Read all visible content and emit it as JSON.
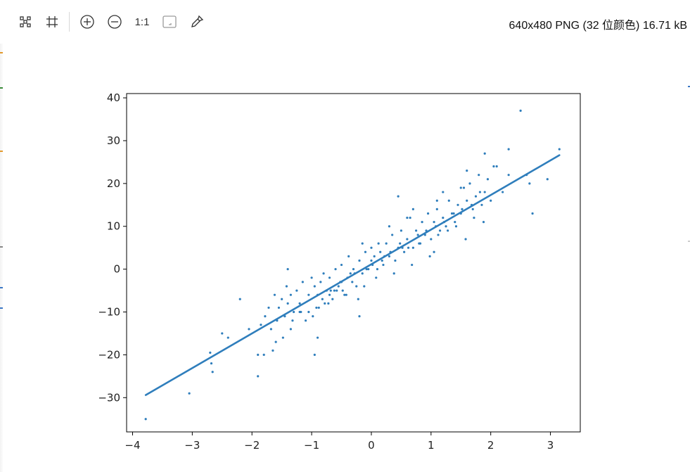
{
  "toolbar": {
    "tools": [
      {
        "name": "fit-window-icon",
        "label": ""
      },
      {
        "name": "crop-icon",
        "label": ""
      },
      {
        "name": "zoom-in-icon",
        "label": ""
      },
      {
        "name": "zoom-out-icon",
        "label": ""
      },
      {
        "name": "actual-size-button",
        "label": "1:1"
      },
      {
        "name": "fullscreen-icon",
        "label": ""
      },
      {
        "name": "color-picker-icon",
        "label": ""
      }
    ],
    "image_info": "640x480 PNG (32 位颜色) 16.71 kB"
  },
  "chart_data": {
    "type": "scatter",
    "title": "",
    "xlabel": "",
    "ylabel": "",
    "xlim": [
      -4.1,
      3.5
    ],
    "ylim": [
      -38,
      41
    ],
    "xticks": [
      -4,
      -3,
      -2,
      -1,
      0,
      1,
      2,
      3
    ],
    "xtick_labels": [
      "−4",
      "−3",
      "−2",
      "−1",
      "0",
      "1",
      "2",
      "3"
    ],
    "yticks": [
      -30,
      -20,
      -10,
      0,
      10,
      20,
      30,
      40
    ],
    "ytick_labels": [
      "−30",
      "−20",
      "−10",
      "0",
      "10",
      "20",
      "30",
      "40"
    ],
    "grid": false,
    "color": "#2f7ebc",
    "series": [
      {
        "kind": "line",
        "x": [
          -3.78,
          3.15
        ],
        "y": [
          -29.4,
          26.6
        ]
      },
      {
        "kind": "points",
        "x": [
          -3.78,
          -3.05,
          -2.7,
          -2.68,
          -2.66,
          -2.5,
          -2.4,
          -2.2,
          -2.05,
          -1.9,
          -1.9,
          -1.85,
          -1.78,
          -1.72,
          -1.68,
          -1.62,
          -1.58,
          -1.55,
          -1.5,
          -1.45,
          -1.42,
          -1.4,
          -1.35,
          -1.3,
          -1.25,
          -1.2,
          -1.15,
          -1.1,
          -1.05,
          -1.0,
          -0.95,
          -0.92,
          -0.9,
          -0.85,
          -0.8,
          -0.78,
          -0.75,
          -0.7,
          -0.65,
          -0.6,
          -0.58,
          -0.55,
          -0.5,
          -0.45,
          -0.4,
          -0.38,
          -0.35,
          -0.3,
          -0.25,
          -0.2,
          -0.15,
          -0.1,
          -0.05,
          0.0,
          0.05,
          0.1,
          0.12,
          0.15,
          0.2,
          0.25,
          0.3,
          0.35,
          0.4,
          0.45,
          0.5,
          0.55,
          0.6,
          0.65,
          0.7,
          0.75,
          0.8,
          0.85,
          0.9,
          0.95,
          1.0,
          1.05,
          1.1,
          1.15,
          1.2,
          1.25,
          1.3,
          1.35,
          1.4,
          1.45,
          1.5,
          1.55,
          1.6,
          1.65,
          1.7,
          1.75,
          1.8,
          1.85,
          1.9,
          1.95,
          2.0,
          2.1,
          2.2,
          2.3,
          2.5,
          2.6,
          2.65,
          2.7,
          2.95,
          3.15,
          -1.8,
          -1.6,
          -1.35,
          -1.2,
          -1.05,
          -0.88,
          -0.72,
          -0.62,
          -0.48,
          -0.32,
          -0.22,
          -0.08,
          0.08,
          0.22,
          0.38,
          0.52,
          0.68,
          0.82,
          0.98,
          1.12,
          1.28,
          1.42,
          1.58,
          1.72,
          1.88,
          -1.65,
          -1.48,
          -1.32,
          -1.18,
          -0.98,
          -0.82,
          -0.68,
          -0.52,
          -0.42,
          -0.28,
          -0.12,
          0.02,
          0.18,
          0.32,
          0.48,
          0.62,
          0.78,
          0.92,
          1.08,
          1.22,
          1.38,
          1.52,
          1.68,
          1.82,
          -0.95,
          -0.5,
          -0.15,
          0.3,
          0.7,
          1.1,
          1.5,
          -1.4,
          -0.7,
          0.0,
          0.6,
          1.2,
          1.9,
          2.3,
          -0.9,
          -0.2,
          0.45,
          1.05,
          1.6,
          2.05
        ],
        "y": [
          -35,
          -29,
          -19.5,
          -22,
          -24,
          -15,
          -16,
          -7,
          -14,
          -20,
          -25,
          -13,
          -11,
          -9,
          -14,
          -6,
          -12,
          -9,
          -7,
          -11,
          -4,
          0,
          -6,
          -10,
          -5,
          -8,
          -3,
          -12,
          -6,
          -2,
          -4,
          -9,
          -6,
          -3,
          -1,
          -8,
          -5,
          -2,
          -7,
          0,
          -5,
          -4,
          1,
          -6,
          -2,
          3,
          -1,
          0,
          -4,
          2,
          -1,
          4,
          0,
          2,
          3,
          0,
          6,
          4,
          1,
          6,
          3,
          8,
          2,
          5,
          9,
          4,
          7,
          12,
          5,
          9,
          6,
          11,
          8,
          13,
          7,
          11,
          14,
          9,
          12,
          10,
          16,
          13,
          11,
          15,
          13,
          19,
          16,
          20,
          14,
          17,
          22,
          15,
          18,
          21,
          16,
          24,
          18,
          28,
          37,
          22,
          20,
          13,
          21,
          28,
          -20,
          -17,
          -14,
          -10,
          -10,
          -9,
          -8,
          -5,
          -5,
          -3,
          -7,
          0,
          -2,
          3,
          -1,
          5,
          1,
          6,
          3,
          8,
          9,
          10,
          7,
          12,
          11,
          -19,
          -16,
          -12,
          -10,
          -11,
          -7,
          -5,
          -3,
          -6,
          -1,
          -4,
          1,
          2,
          4,
          6,
          5,
          8,
          9,
          10,
          11,
          13,
          14,
          15,
          18,
          -20,
          -3,
          6,
          10,
          14,
          16,
          19,
          -8,
          -6,
          5,
          12,
          18,
          27,
          22,
          -16,
          -11,
          17,
          4,
          23,
          24
        ]
      }
    ]
  }
}
